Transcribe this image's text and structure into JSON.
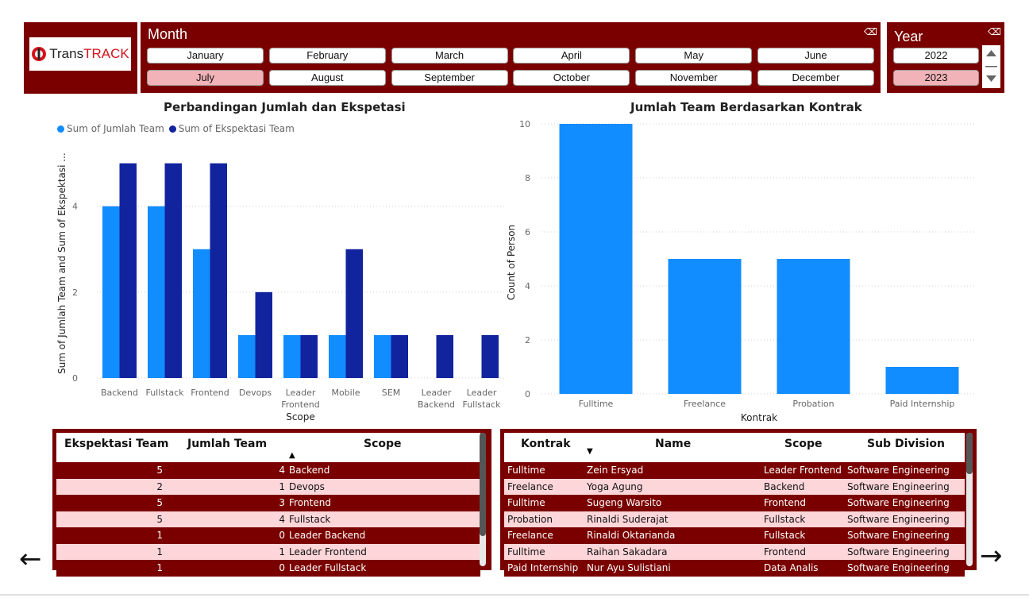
{
  "logo": {
    "text_a": "Trans",
    "text_b": "TRA",
    "text_c": "C",
    "text_d": "K"
  },
  "month_slicer": {
    "title": "Month",
    "options": [
      "January",
      "February",
      "March",
      "April",
      "May",
      "June",
      "July",
      "August",
      "September",
      "October",
      "November",
      "December"
    ],
    "selected": "July"
  },
  "year_slicer": {
    "title": "Year",
    "options": [
      "2022",
      "2023"
    ],
    "selected": "2023"
  },
  "chart_data": [
    {
      "type": "bar",
      "title": "Perbandingan Jumlah dan Ekspetasi",
      "xlabel": "Scope",
      "ylabel": "Sum of Jumlah Team and Sum of Ekspektasi ...",
      "categories": [
        "Backend",
        "Fullstack",
        "Frontend",
        "Devops",
        "Leader Frontend",
        "Mobile",
        "SEM",
        "Leader Backend",
        "Leader Fullstack"
      ],
      "category_lines": [
        [
          "Backend"
        ],
        [
          "Fullstack"
        ],
        [
          "Frontend"
        ],
        [
          "Devops"
        ],
        [
          "Leader",
          "Frontend"
        ],
        [
          "Mobile"
        ],
        [
          "SEM"
        ],
        [
          "Leader",
          "Backend"
        ],
        [
          "Leader",
          "Fullstack"
        ]
      ],
      "series": [
        {
          "name": "Sum of Jumlah Team",
          "color": "#118dff",
          "values": [
            4,
            4,
            3,
            1,
            1,
            1,
            1,
            0,
            0
          ]
        },
        {
          "name": "Sum of Ekspektasi Team",
          "color": "#12239e",
          "values": [
            5,
            5,
            5,
            2,
            1,
            3,
            1,
            1,
            1
          ]
        }
      ],
      "yticks": [
        "0",
        "2",
        "4"
      ],
      "ylim": [
        0,
        5.4
      ],
      "legend": "top-left",
      "grid": true
    },
    {
      "type": "bar",
      "title": "Jumlah Team Berdasarkan Kontrak",
      "xlabel": "Kontrak",
      "ylabel": "Count of Person",
      "categories": [
        "Fulltime",
        "Freelance",
        "Probation",
        "Paid Internship"
      ],
      "series": [
        {
          "color": "#118dff",
          "values": [
            10,
            5,
            5,
            1
          ]
        }
      ],
      "yticks": [
        "0",
        "2",
        "4",
        "6",
        "8",
        "10"
      ],
      "ylim": [
        0,
        10
      ],
      "grid": true
    }
  ],
  "scope_table": {
    "headers": [
      "Ekspektasi Team",
      "Jumlah Team",
      "Scope"
    ],
    "sort_indicator": "▲",
    "rows": [
      [
        "5",
        "4",
        "Backend"
      ],
      [
        "2",
        "1",
        "Devops"
      ],
      [
        "5",
        "3",
        "Frontend"
      ],
      [
        "5",
        "4",
        "Fullstack"
      ],
      [
        "1",
        "0",
        "Leader Backend"
      ],
      [
        "1",
        "1",
        "Leader Frontend"
      ],
      [
        "1",
        "0",
        "Leader Fullstack"
      ]
    ]
  },
  "person_table": {
    "headers": [
      "Kontrak",
      "Name",
      "Scope",
      "Sub Division"
    ],
    "sort_indicator": "▼",
    "rows": [
      [
        "Fulltime",
        "Zein Ersyad",
        "Leader Frontend",
        "Software Engineering"
      ],
      [
        "Freelance",
        "Yoga Agung",
        "Backend",
        "Software Engineering"
      ],
      [
        "Fulltime",
        "Sugeng Warsito",
        "Frontend",
        "Software Engineering"
      ],
      [
        "Probation",
        "Rinaldi Suderajat",
        "Fullstack",
        "Software Engineering"
      ],
      [
        "Freelance",
        "Rinaldi Oktarianda",
        "Fullstack",
        "Software Engineering"
      ],
      [
        "Fulltime",
        "Raihan Sakadara",
        "Frontend",
        "Software Engineering"
      ],
      [
        "Paid Internship",
        "Nur Ayu Sulistiani",
        "Data Analis",
        "Software Engineering"
      ]
    ]
  },
  "nav": {
    "prev": "←",
    "next": "→"
  }
}
